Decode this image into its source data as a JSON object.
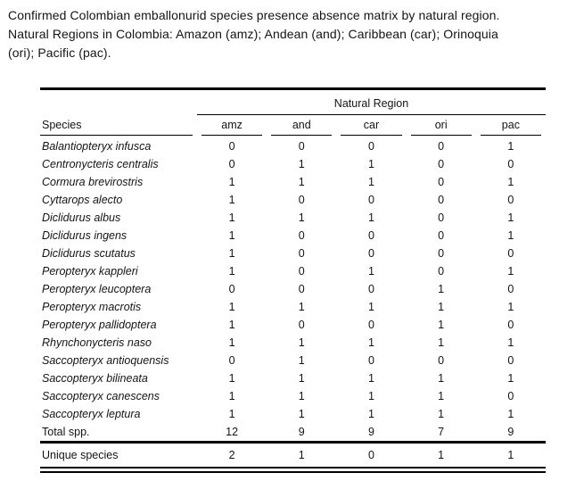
{
  "caption": {
    "lines": [
      "Confirmed Colombian emballonurid species presence absence matrix by natural region.",
      "Natural Regions in Colombia: Amazon (amz); Andean (and); Caribbean (car); Orinoquia",
      "(ori); Pacific (pac)."
    ]
  },
  "table": {
    "group_header": "Natural Region",
    "species_header": "Species",
    "region_headers": [
      "amz",
      "and",
      "car",
      "ori",
      "pac"
    ],
    "rows": [
      {
        "species": "Balantiopteryx infusca",
        "values": [
          0,
          0,
          0,
          0,
          1
        ]
      },
      {
        "species": "Centronycteris centralis",
        "values": [
          0,
          1,
          1,
          0,
          0
        ]
      },
      {
        "species": "Cormura brevirostris",
        "values": [
          1,
          1,
          1,
          0,
          1
        ]
      },
      {
        "species": "Cyttarops alecto",
        "values": [
          1,
          0,
          0,
          0,
          0
        ]
      },
      {
        "species": "Diclidurus albus",
        "values": [
          1,
          1,
          1,
          0,
          1
        ]
      },
      {
        "species": "Diclidurus ingens",
        "values": [
          1,
          0,
          0,
          0,
          1
        ]
      },
      {
        "species": "Diclidurus scutatus",
        "values": [
          1,
          0,
          0,
          0,
          0
        ]
      },
      {
        "species": "Peropteryx kappleri",
        "values": [
          1,
          0,
          1,
          0,
          1
        ]
      },
      {
        "species": "Peropteryx leucoptera",
        "values": [
          0,
          0,
          0,
          1,
          0
        ]
      },
      {
        "species": "Peropteryx macrotis",
        "values": [
          1,
          1,
          1,
          1,
          1
        ]
      },
      {
        "species": "Peropteryx pallidoptera",
        "values": [
          1,
          0,
          0,
          1,
          0
        ]
      },
      {
        "species": "Rhynchonycteris naso",
        "values": [
          1,
          1,
          1,
          1,
          1
        ]
      },
      {
        "species": "Saccopteryx antioquensis",
        "values": [
          0,
          1,
          0,
          0,
          0
        ]
      },
      {
        "species": "Saccopteryx bilineata",
        "values": [
          1,
          1,
          1,
          1,
          1
        ]
      },
      {
        "species": "Saccopteryx canescens",
        "values": [
          1,
          1,
          1,
          1,
          0
        ]
      },
      {
        "species": "Saccopteryx leptura",
        "values": [
          1,
          1,
          1,
          1,
          1
        ]
      }
    ],
    "total_label": "Total spp.",
    "total_values": [
      12,
      9,
      9,
      7,
      9
    ],
    "unique_label": "Unique species",
    "unique_values": [
      2,
      1,
      0,
      1,
      1
    ]
  }
}
